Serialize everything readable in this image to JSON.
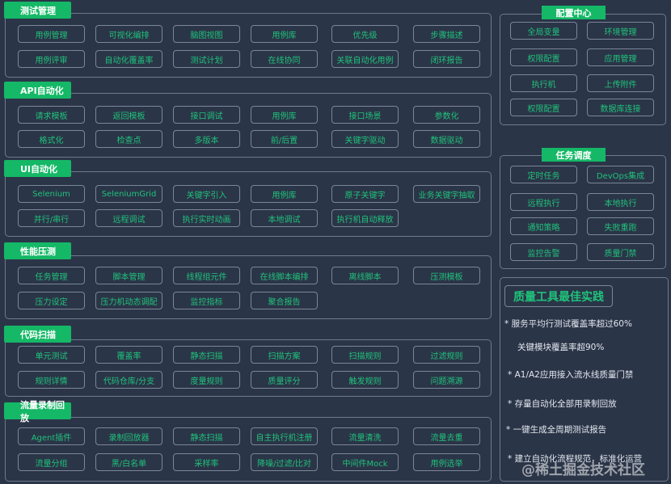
{
  "sections": [
    {
      "title": "测试管理",
      "items": [
        "用例管理",
        "可视化编排",
        "脑图视图",
        "用例库",
        "优先级",
        "步骤描述",
        "用例评审",
        "自动化覆盖率",
        "测试计划",
        "在线协同",
        "关联自动化用例",
        "闭环报告"
      ]
    },
    {
      "title": "API自动化",
      "items": [
        "请求模板",
        "返回模板",
        "接口调试",
        "用例库",
        "接口场景",
        "参数化",
        "格式化",
        "检查点",
        "多版本",
        "前/后置",
        "关键字驱动",
        "数据驱动"
      ]
    },
    {
      "title": "UI自动化",
      "items": [
        "Selenium",
        "SeleniumGrid",
        "关键字引入",
        "用例库",
        "原子关键字",
        "业务关键字抽取",
        "并行/串行",
        "远程调试",
        "执行实时动画",
        "本地调试",
        "执行机自动释放"
      ]
    },
    {
      "title": "性能压测",
      "items": [
        "任务管理",
        "脚本管理",
        "线程组元件",
        "在线脚本编排",
        "离线脚本",
        "压测模板",
        "压力设定",
        "压力机动态调配",
        "监控指标",
        "聚合报告"
      ]
    },
    {
      "title": "代码扫描",
      "items": [
        "单元测试",
        "覆盖率",
        "静态扫描",
        "扫描方案",
        "扫描规则",
        "过滤规则",
        "规则详情",
        "代码仓库/分支",
        "度量规则",
        "质量评分",
        "触发规则",
        "问题溯源"
      ]
    },
    {
      "title": "流量录制回放",
      "items": [
        "Agent插件",
        "录制回放器",
        "静态扫描",
        "自主执行机注册",
        "流量清洗",
        "流量去重",
        "流量分组",
        "黑/白名单",
        "采样率",
        "降噪/过滤/比对",
        "中间件Mock",
        "用例选举"
      ]
    }
  ],
  "config_center": {
    "title": "配置中心",
    "items": [
      "全局变量",
      "环境管理",
      "权限配置",
      "应用管理",
      "执行机",
      "上传附件",
      "权限配置",
      "数据库连接"
    ]
  },
  "task_scheduling": {
    "title": "任务调度",
    "items": [
      "定时任务",
      "DevOps集成",
      "远程执行",
      "本地执行",
      "通知策略",
      "失败重跑",
      "监控告警",
      "质量门禁"
    ]
  },
  "best_practices": {
    "title": "质量工具最佳实践",
    "items": [
      "*  服务平均行测试覆盖率超过60%",
      "关键模块覆盖率超90%",
      "*  A1/A2应用接入流水线质量门禁",
      "*  存量自动化全部用录制回放",
      "*  一键生成全周期测试报告",
      "*  建立自动化流程规范，标准化运营"
    ]
  },
  "watermark": "@稀土掘金技术社区",
  "colors": {
    "background": "#2b3548",
    "accent": "#14b866",
    "item_text": "#1fc27a",
    "border": "#6f7a8c"
  }
}
